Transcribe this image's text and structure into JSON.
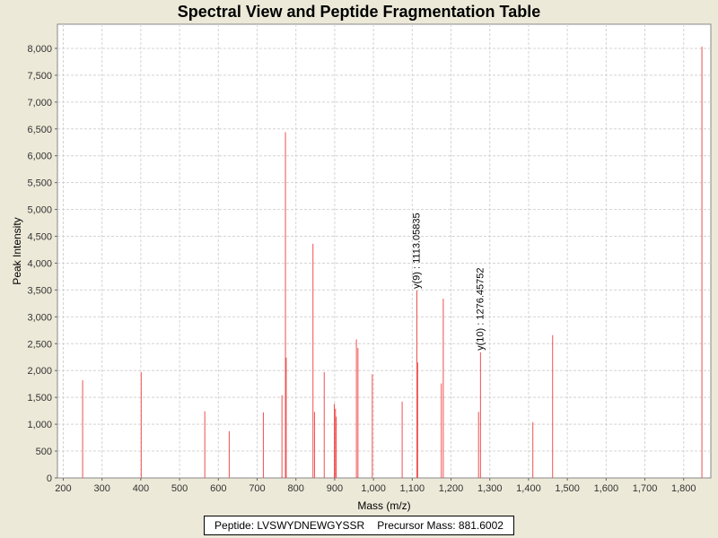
{
  "chart_data": {
    "type": "bar",
    "title": "Spectral View and Peptide Fragmentation Table",
    "xlabel": "Mass (m/z)",
    "ylabel": "Peak Intensity",
    "xlim": [
      185,
      1870
    ],
    "ylim": [
      0,
      8450
    ],
    "x_ticks": [
      200,
      300,
      400,
      500,
      600,
      700,
      800,
      900,
      1000,
      1100,
      1200,
      1300,
      1400,
      1500,
      1600,
      1700,
      1800
    ],
    "x_tick_labels": [
      "200",
      "300",
      "400",
      "500",
      "600",
      "700",
      "800",
      "900",
      "1,000",
      "1,100",
      "1,200",
      "1,300",
      "1,400",
      "1,500",
      "1,600",
      "1,700",
      "1,800"
    ],
    "y_ticks": [
      0,
      500,
      1000,
      1500,
      2000,
      2500,
      3000,
      3500,
      4000,
      4500,
      5000,
      5500,
      6000,
      6500,
      7000,
      7500,
      8000
    ],
    "y_tick_labels": [
      "0",
      "500",
      "1,000",
      "1,500",
      "2,000",
      "2,500",
      "3,000",
      "3,500",
      "4,000",
      "4,500",
      "5,000",
      "5,500",
      "6,000",
      "6,500",
      "7,000",
      "7,500",
      "8,000"
    ],
    "grid": true,
    "bar_color": "#f05050",
    "series": [
      {
        "peaks": [
          {
            "x": 250,
            "y": 1820
          },
          {
            "x": 401,
            "y": 1970
          },
          {
            "x": 565,
            "y": 1240
          },
          {
            "x": 628,
            "y": 870
          },
          {
            "x": 716,
            "y": 1220
          },
          {
            "x": 764,
            "y": 1540
          },
          {
            "x": 773,
            "y": 6440
          },
          {
            "x": 775,
            "y": 2240
          },
          {
            "x": 844,
            "y": 4360
          },
          {
            "x": 848,
            "y": 1230
          },
          {
            "x": 873,
            "y": 1970
          },
          {
            "x": 899,
            "y": 1380
          },
          {
            "x": 902,
            "y": 1290
          },
          {
            "x": 904,
            "y": 1140
          },
          {
            "x": 956,
            "y": 2580
          },
          {
            "x": 960,
            "y": 2420
          },
          {
            "x": 997,
            "y": 1930
          },
          {
            "x": 1074,
            "y": 1420
          },
          {
            "x": 1112,
            "y": 3490
          },
          {
            "x": 1114,
            "y": 2150
          },
          {
            "x": 1175,
            "y": 1760
          },
          {
            "x": 1180,
            "y": 3340
          },
          {
            "x": 1271,
            "y": 1230
          },
          {
            "x": 1276,
            "y": 2340
          },
          {
            "x": 1411,
            "y": 1040
          },
          {
            "x": 1462,
            "y": 2660
          },
          {
            "x": 1847,
            "y": 8030
          }
        ]
      }
    ],
    "annotations": [
      {
        "text": "y(9) : 1113.05835",
        "x": 1112,
        "y": 3490
      },
      {
        "text": "y(10) : 1276.45752",
        "x": 1276,
        "y": 2340
      }
    ]
  },
  "legend": {
    "peptide": "Peptide: LVSWYDNEWGYSSR",
    "precursor": "Precursor Mass: 881.6002"
  }
}
